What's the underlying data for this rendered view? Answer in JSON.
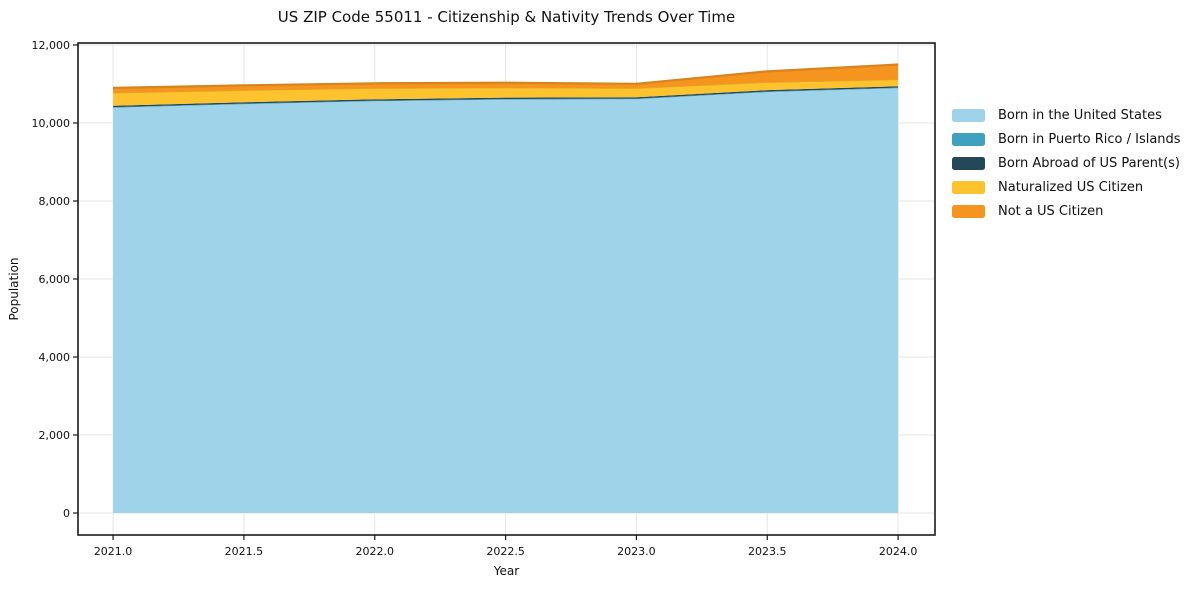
{
  "chart_data": {
    "type": "area",
    "stacked": true,
    "title": "US ZIP Code 55011 - Citizenship & Nativity Trends Over Time",
    "xlabel": "Year",
    "ylabel": "Population",
    "x": [
      2021.0,
      2021.5,
      2022.0,
      2022.5,
      2023.0,
      2023.5,
      2024.0
    ],
    "series": [
      {
        "name": "Born in the United States",
        "color": "#9ed3ea",
        "values": [
          10390,
          10480,
          10556,
          10598,
          10608,
          10790,
          10890
        ]
      },
      {
        "name": "Born in Puerto Rico / Islands",
        "color": "#3fa0bf",
        "values": [
          16,
          16,
          16,
          16,
          16,
          16,
          16
        ]
      },
      {
        "name": "Born Abroad of US Parent(s)",
        "color": "#24475a",
        "values": [
          36,
          36,
          36,
          36,
          36,
          36,
          36
        ]
      },
      {
        "name": "Naturalized US Citizen",
        "color": "#fdc32f",
        "values": [
          330,
          305,
          282,
          255,
          230,
          200,
          172
        ]
      },
      {
        "name": "Not a US Citizen",
        "color": "#f5951f",
        "values": [
          128,
          128,
          128,
          128,
          115,
          282,
          385
        ]
      }
    ],
    "totals": [
      10900,
      10965,
      11018,
      11033,
      11005,
      11324,
      11499
    ],
    "x_ticks": {
      "values": [
        2021.0,
        2021.5,
        2022.0,
        2022.5,
        2023.0,
        2023.5,
        2024.0
      ],
      "labels": [
        "2021.0",
        "2021.5",
        "2022.0",
        "2022.5",
        "2023.0",
        "2023.5",
        "2024.0"
      ]
    },
    "y_ticks": {
      "values": [
        0,
        2000,
        4000,
        6000,
        8000,
        10000,
        12000
      ],
      "labels": [
        "0",
        "2,000",
        "4,000",
        "6,000",
        "8,000",
        "10,000",
        "12,000"
      ]
    },
    "xlim": [
      2020.866,
      2024.141
    ],
    "ylim": [
      -564,
      12051
    ],
    "grid": true,
    "legend_position": "outside-right",
    "colors": {
      "grid": "#e6e6e6",
      "frame": "#1a1a1a",
      "text": "#111111",
      "background": "#ffffff"
    }
  }
}
